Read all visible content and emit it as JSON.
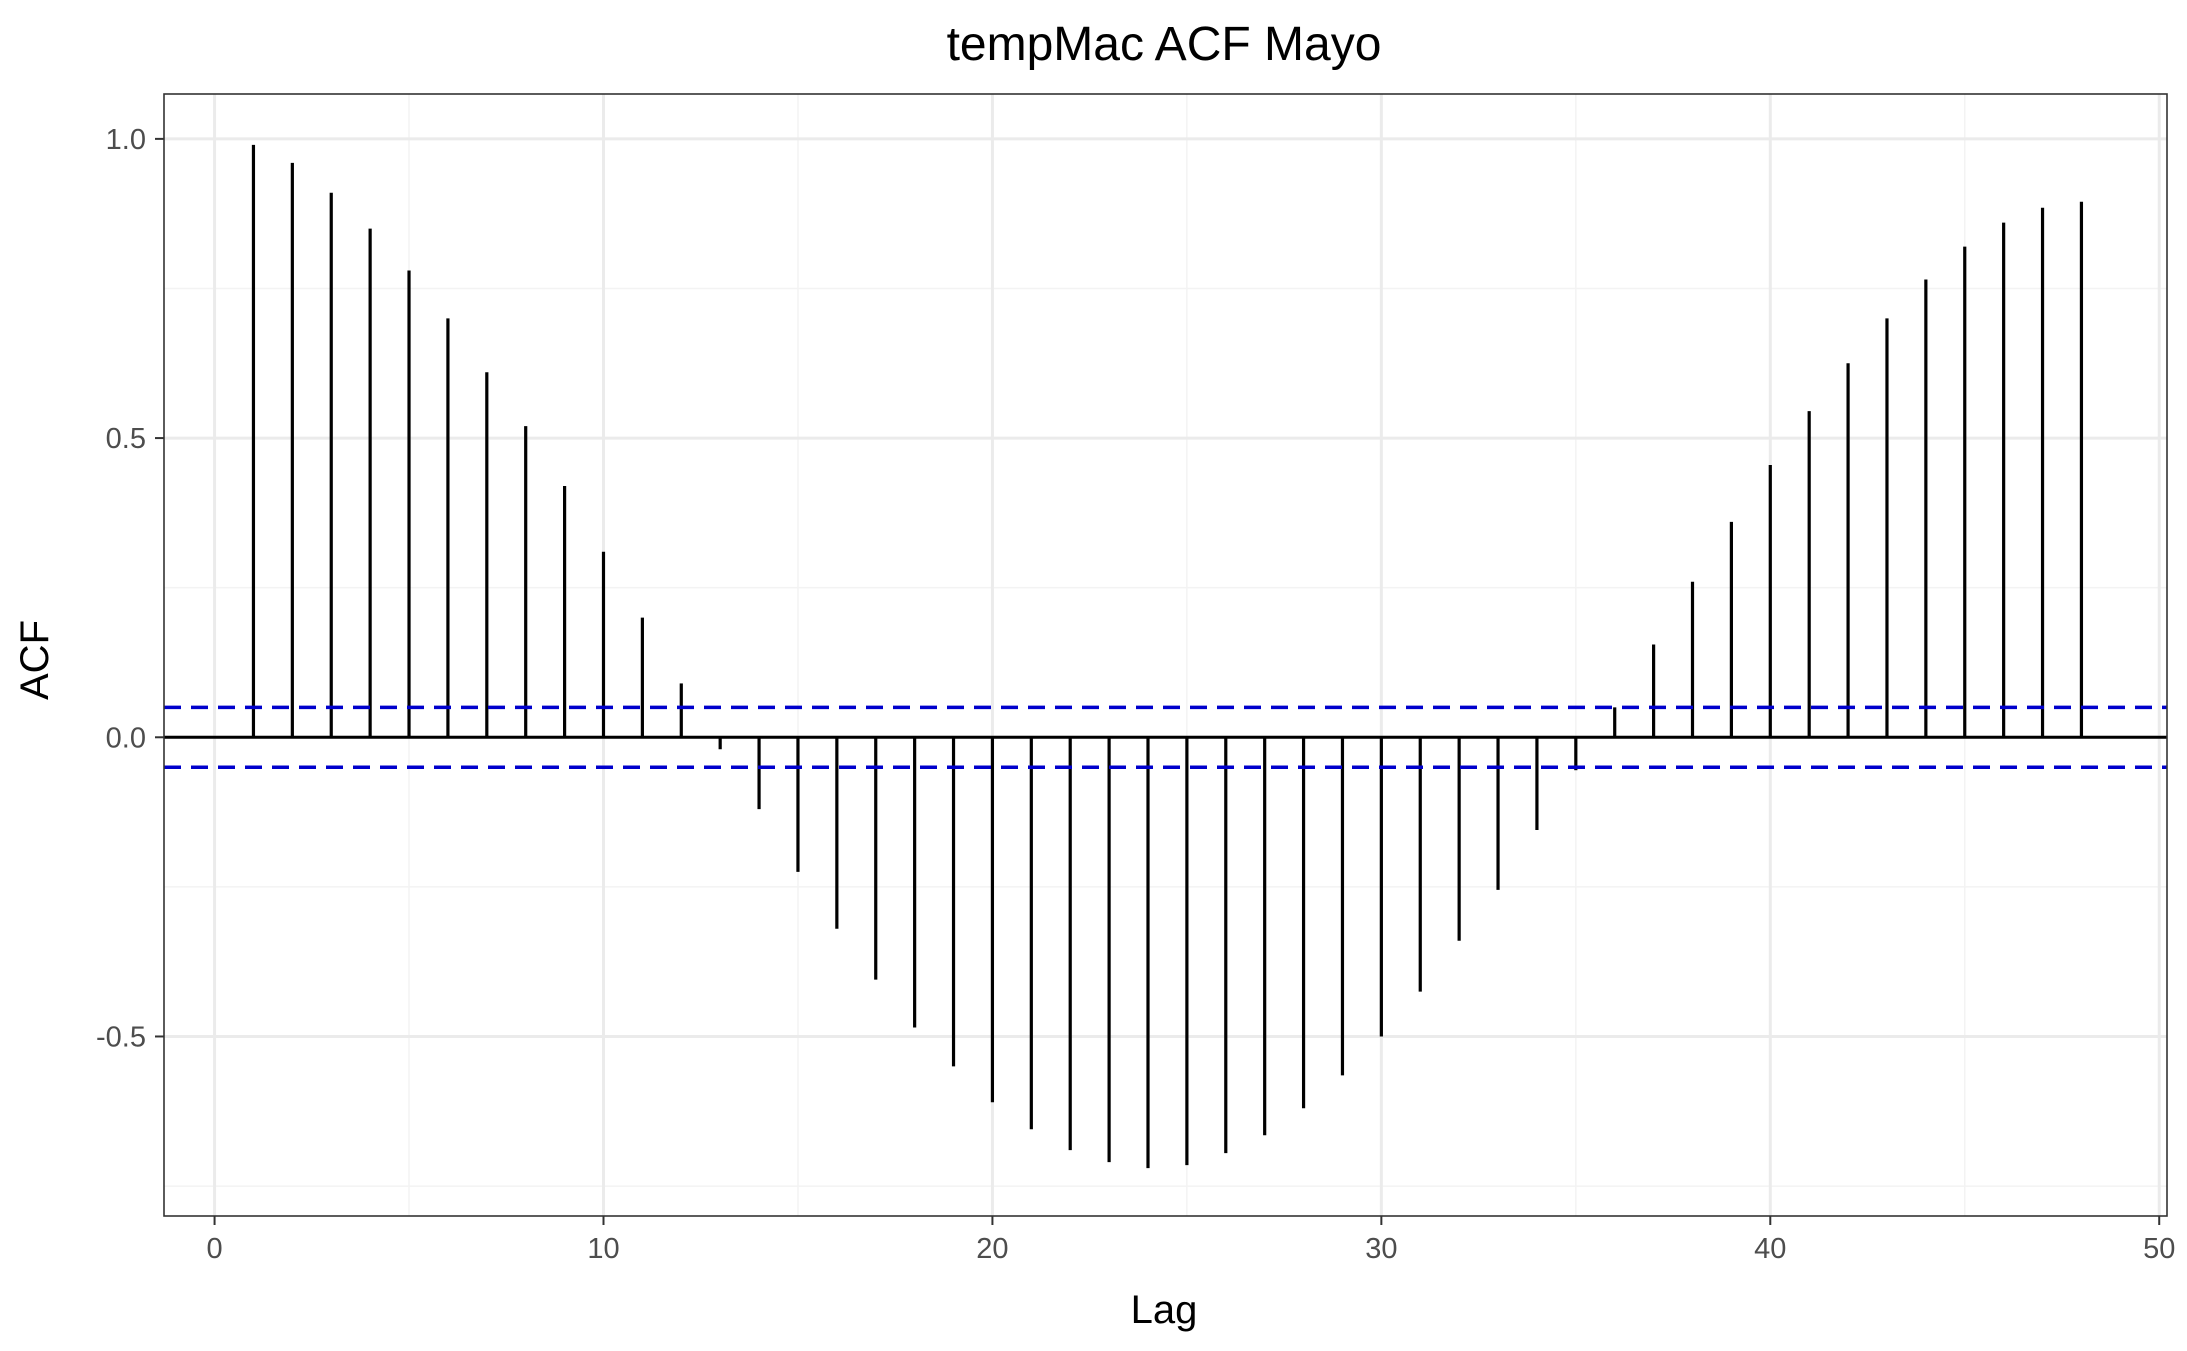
{
  "chart_data": {
    "type": "bar",
    "title": "tempMac ACF Mayo",
    "xlabel": "Lag",
    "ylabel": "ACF",
    "xlim": [
      -1.3,
      50.2
    ],
    "ylim": [
      -0.8,
      1.075
    ],
    "x_ticks": [
      0,
      10,
      20,
      30,
      40,
      50
    ],
    "x_tick_labels": [
      "0",
      "10",
      "20",
      "30",
      "40",
      "50"
    ],
    "y_ticks": [
      -0.5,
      0.0,
      0.5,
      1.0
    ],
    "y_tick_labels": [
      "-0.5",
      "0.0",
      "0.5",
      "1.0"
    ],
    "grid": true,
    "lags": [
      1,
      2,
      3,
      4,
      5,
      6,
      7,
      8,
      9,
      10,
      11,
      12,
      13,
      14,
      15,
      16,
      17,
      18,
      19,
      20,
      21,
      22,
      23,
      24,
      25,
      26,
      27,
      28,
      29,
      30,
      31,
      32,
      33,
      34,
      35,
      36,
      37,
      38,
      39,
      40,
      41,
      42,
      43,
      44,
      45,
      46,
      47,
      48
    ],
    "acf": [
      0.99,
      0.96,
      0.91,
      0.85,
      0.78,
      0.7,
      0.61,
      0.52,
      0.42,
      0.31,
      0.2,
      0.09,
      -0.02,
      -0.12,
      -0.225,
      -0.32,
      -0.405,
      -0.485,
      -0.55,
      -0.61,
      -0.655,
      -0.69,
      -0.71,
      -0.72,
      -0.715,
      -0.695,
      -0.665,
      -0.62,
      -0.565,
      -0.5,
      -0.425,
      -0.34,
      -0.255,
      -0.155,
      -0.055,
      0.05,
      0.155,
      0.26,
      0.36,
      0.455,
      0.545,
      0.625,
      0.7,
      0.765,
      0.82,
      0.86,
      0.885,
      0.895
    ],
    "confidence_bound": 0.05,
    "colors": {
      "bars": "#000000",
      "zero_line": "#000000",
      "confidence": "#0000cc",
      "grid_major": "#ebebeb",
      "grid_minor": "#f3f3f3",
      "panel_border": "#333333"
    }
  }
}
